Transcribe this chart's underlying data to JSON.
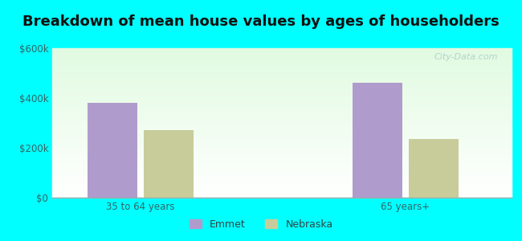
{
  "title": "Breakdown of mean house values by ages of householders",
  "categories": [
    "35 to 64 years",
    "65 years+"
  ],
  "series": {
    "Emmet": [
      380000,
      460000
    ],
    "Nebraska": [
      270000,
      235000
    ]
  },
  "colors": {
    "Emmet": "#b09ccc",
    "Nebraska": "#c8cc9a"
  },
  "ylim": [
    0,
    600000
  ],
  "yticks": [
    0,
    200000,
    400000,
    600000
  ],
  "ytick_labels": [
    "$0",
    "$200k",
    "$400k",
    "$600k"
  ],
  "bar_width": 0.28,
  "figure_bg": "#00ffff",
  "plot_bg_top": "#ffffff",
  "plot_bg_bottom": "#d8f0d8",
  "watermark": "City-Data.com",
  "title_fontsize": 13,
  "title_color": "#111111"
}
